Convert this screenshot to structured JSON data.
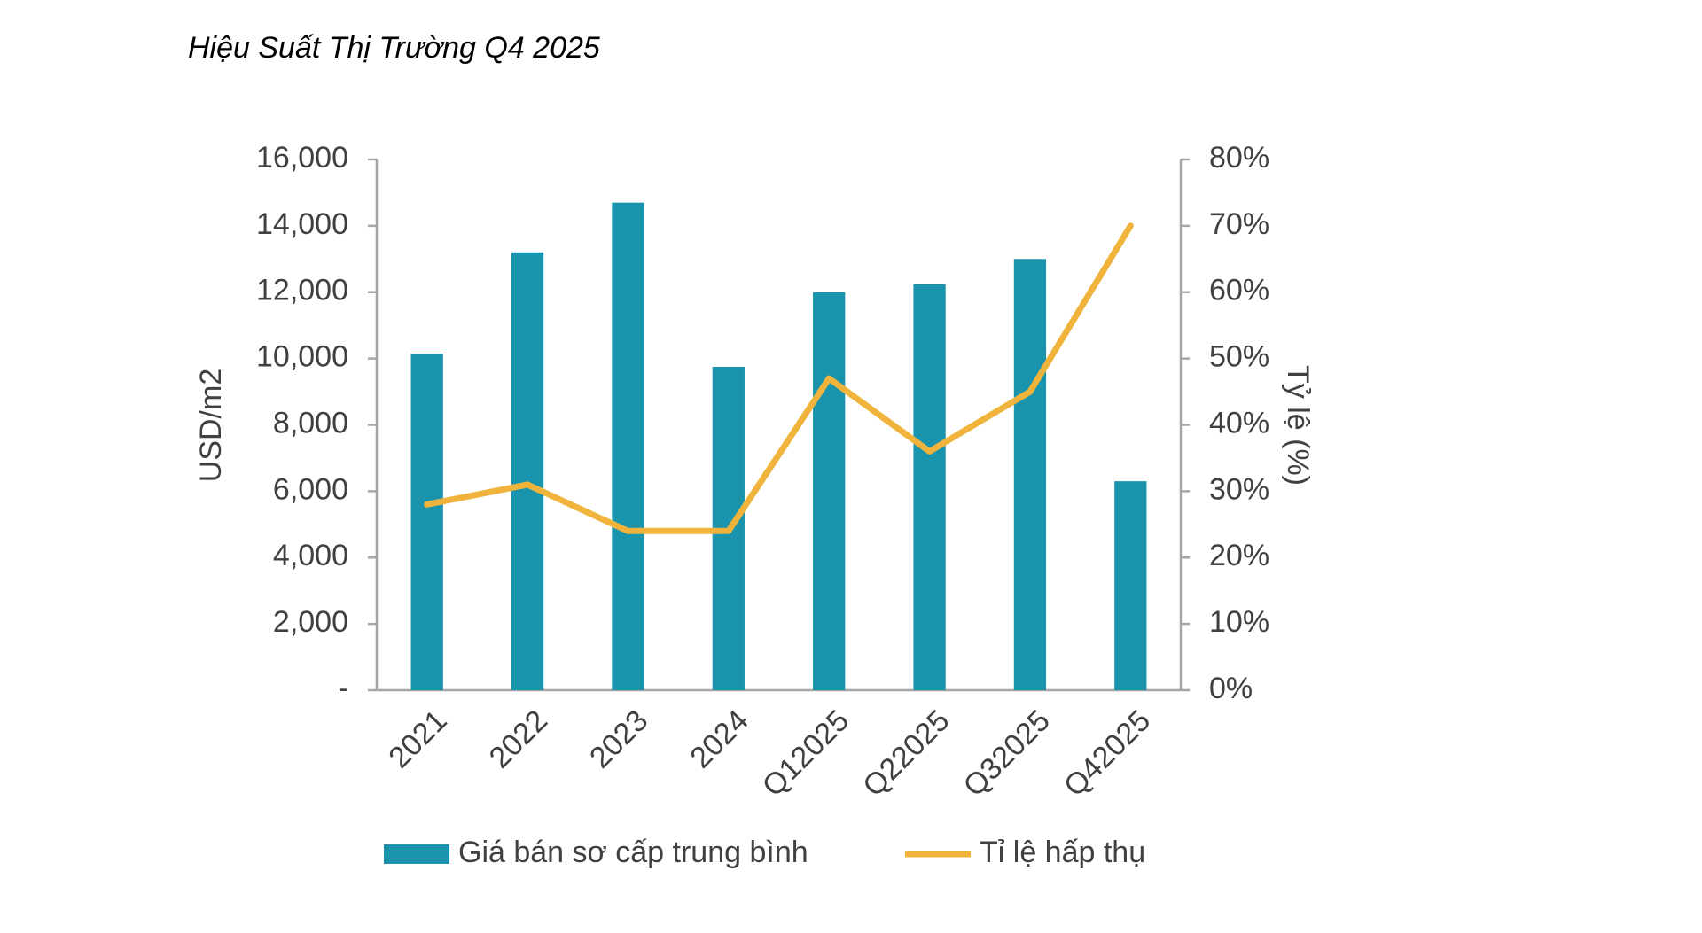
{
  "chart_data": {
    "type": "bar",
    "title": "Hiệu Suất Thị Trường Q4 2025",
    "y_label": "USD/m2",
    "y2_label": "Tỷ lệ (%)",
    "categories": [
      "2021",
      "2022",
      "2023",
      "2024",
      "Q12025",
      "Q22025",
      "Q32025",
      "Q42025"
    ],
    "series": [
      {
        "name": "Giá bán sơ cấp trung bình",
        "type": "bar",
        "color": "#1a93ad",
        "values": [
          10150,
          13200,
          14700,
          9750,
          12000,
          12250,
          13000,
          6300
        ]
      },
      {
        "name": "Tỉ lệ hấp thụ",
        "type": "line",
        "axis": "y2",
        "color": "#f0b43c",
        "values": [
          28,
          31,
          24,
          24,
          47,
          36,
          45,
          70
        ]
      }
    ],
    "ylim": [
      0,
      16000
    ],
    "yticks": [
      {
        "value": 0,
        "label": "-"
      },
      {
        "value": 2000,
        "label": "2,000"
      },
      {
        "value": 4000,
        "label": "4,000"
      },
      {
        "value": 6000,
        "label": "6,000"
      },
      {
        "value": 8000,
        "label": "8,000"
      },
      {
        "value": 10000,
        "label": "10,000"
      },
      {
        "value": 12000,
        "label": "12,000"
      },
      {
        "value": 14000,
        "label": "14,000"
      },
      {
        "value": 16000,
        "label": "16,000"
      }
    ],
    "y2lim": [
      0,
      80
    ],
    "y2ticks": [
      {
        "value": 0,
        "label": "0%"
      },
      {
        "value": 10,
        "label": "10%"
      },
      {
        "value": 20,
        "label": "20%"
      },
      {
        "value": 30,
        "label": "30%"
      },
      {
        "value": 40,
        "label": "40%"
      },
      {
        "value": 50,
        "label": "50%"
      },
      {
        "value": 60,
        "label": "60%"
      },
      {
        "value": 70,
        "label": "70%"
      },
      {
        "value": 80,
        "label": "80%"
      }
    ],
    "grid": false
  }
}
